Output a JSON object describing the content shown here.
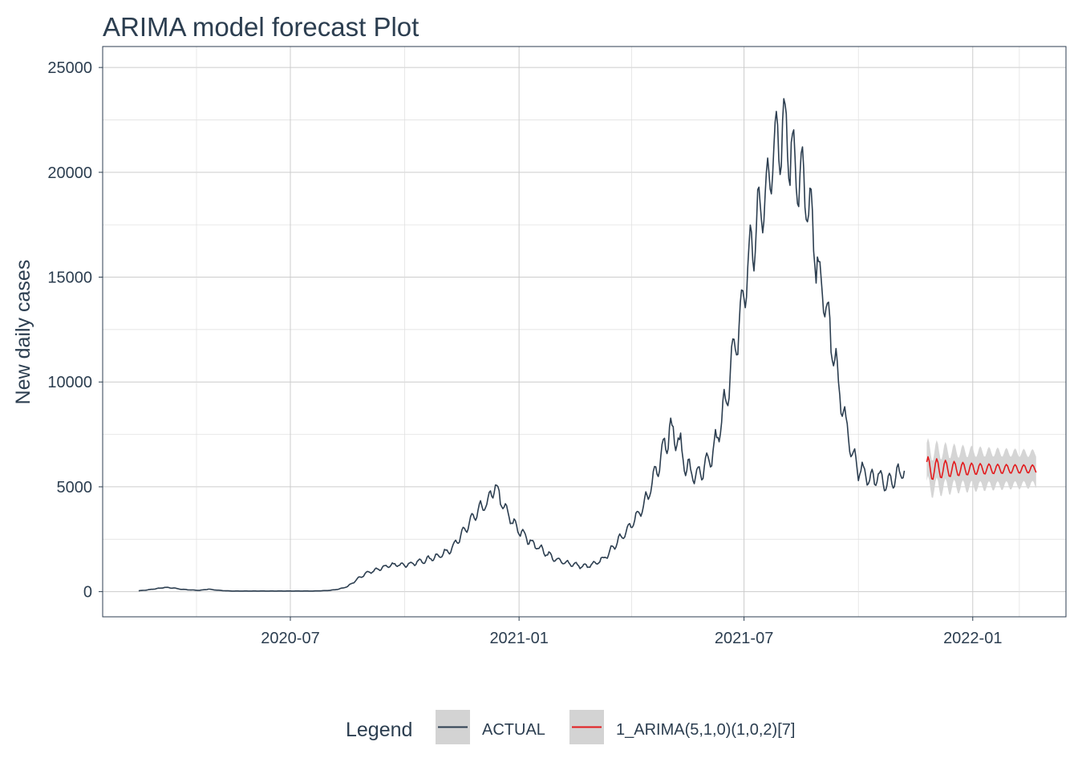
{
  "chart_data": {
    "type": "line",
    "title": "ARIMA model forecast Plot",
    "xlabel": "",
    "ylabel": "New daily cases",
    "ylim": [
      -1200,
      26000
    ],
    "y_ticks": [
      0,
      5000,
      10000,
      15000,
      20000,
      25000
    ],
    "y_tick_labels": [
      "0",
      "5000",
      "10000",
      "15000",
      "20000",
      "25000"
    ],
    "x_range": [
      "2020-02-01",
      "2022-03-17"
    ],
    "x_ticks": [
      "2020-07-01",
      "2021-01-01",
      "2021-07-01",
      "2022-01-01"
    ],
    "x_tick_labels": [
      "2020-07",
      "2021-01",
      "2021-07",
      "2022-01"
    ],
    "grid": true,
    "legend": {
      "title": "Legend",
      "position": "bottom",
      "entries": [
        "ACTUAL",
        "1_ARIMA(5,1,0)(1,0,2)[7]"
      ]
    },
    "series": [
      {
        "name": "ACTUAL",
        "color": "#2c3e50",
        "start_date": "2020-03-01",
        "step_days": 7,
        "weekly_amplitude_ratio": 0.08,
        "values": [
          40,
          80,
          140,
          200,
          170,
          110,
          80,
          60,
          120,
          70,
          40,
          30,
          30,
          30,
          30,
          30,
          30,
          30,
          30,
          30,
          30,
          40,
          60,
          120,
          240,
          550,
          850,
          1000,
          1150,
          1250,
          1300,
          1300,
          1400,
          1500,
          1650,
          1800,
          2100,
          2600,
          3300,
          3800,
          4200,
          5000,
          4000,
          3300,
          2800,
          2400,
          2100,
          1800,
          1500,
          1400,
          1300,
          1200,
          1250,
          1450,
          1800,
          2400,
          2900,
          3400,
          4000,
          5200,
          6500,
          7700,
          7200,
          5900,
          5500,
          5800,
          6600,
          8100,
          10500,
          12600,
          15500,
          17400,
          18900,
          21000,
          22500,
          21000,
          19800,
          18400,
          15500,
          13500,
          11000,
          8500,
          6500,
          5700,
          5400,
          5500,
          5200,
          5400,
          5800
        ]
      },
      {
        "name": "1_ARIMA(5,1,0)(1,0,2)[7]",
        "color": "#e31a1c",
        "start_date": "2021-11-25",
        "end_date": "2022-02-21",
        "center": 5850,
        "initial_oscillation_amplitude": 600,
        "final_oscillation_amplitude": 180,
        "period_days": 7,
        "interval_half_width_start": 900,
        "interval_half_width_end": 750,
        "interval_color": "#d3d3d3"
      }
    ]
  }
}
